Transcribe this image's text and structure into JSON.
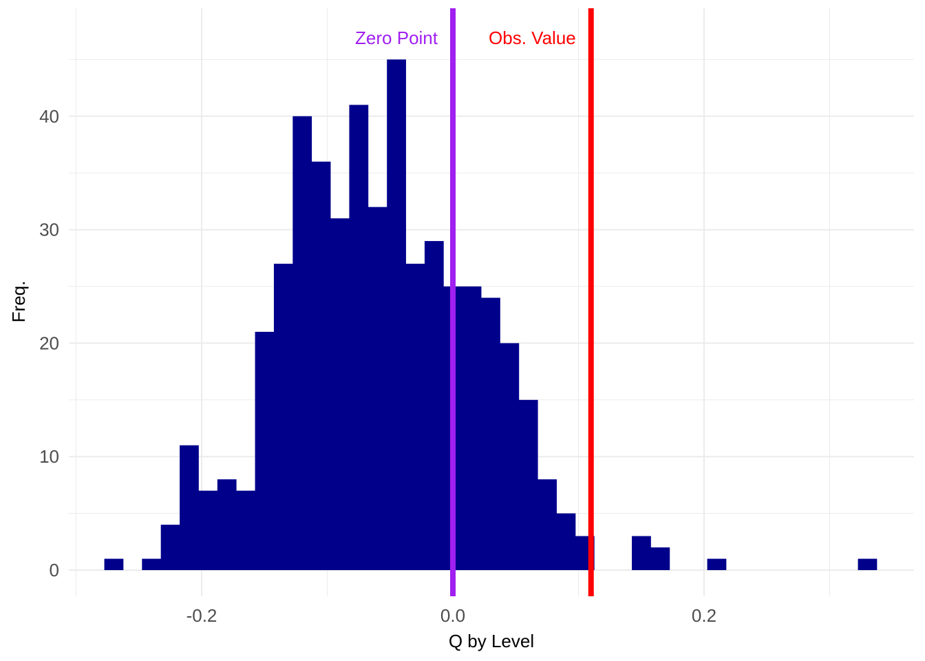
{
  "chart_data": {
    "type": "bar",
    "subtype": "histogram",
    "title": "",
    "xlabel": "Q by Level",
    "ylabel": "Freq.",
    "xlim": [
      -0.3,
      0.35
    ],
    "ylim": [
      0,
      45
    ],
    "x_ticks": [
      {
        "value": -0.2,
        "label": "-0.2"
      },
      {
        "value": 0.0,
        "label": "0.0"
      },
      {
        "value": 0.2,
        "label": "0.2"
      }
    ],
    "y_ticks": [
      {
        "value": 0,
        "label": "0"
      },
      {
        "value": 10,
        "label": "10"
      },
      {
        "value": 20,
        "label": "20"
      },
      {
        "value": 30,
        "label": "30"
      },
      {
        "value": 40,
        "label": "40"
      }
    ],
    "bin_width": 0.015,
    "bins": [
      {
        "x0": -0.2775,
        "x1": -0.2625,
        "count": 1
      },
      {
        "x0": -0.2625,
        "x1": -0.2475,
        "count": 0
      },
      {
        "x0": -0.2475,
        "x1": -0.2325,
        "count": 1
      },
      {
        "x0": -0.2325,
        "x1": -0.2175,
        "count": 4
      },
      {
        "x0": -0.2175,
        "x1": -0.2025,
        "count": 11
      },
      {
        "x0": -0.2025,
        "x1": -0.1875,
        "count": 7
      },
      {
        "x0": -0.1875,
        "x1": -0.1725,
        "count": 8
      },
      {
        "x0": -0.1725,
        "x1": -0.1575,
        "count": 7
      },
      {
        "x0": -0.1575,
        "x1": -0.1425,
        "count": 21
      },
      {
        "x0": -0.1425,
        "x1": -0.1275,
        "count": 27
      },
      {
        "x0": -0.1275,
        "x1": -0.1125,
        "count": 40
      },
      {
        "x0": -0.1125,
        "x1": -0.0975,
        "count": 36
      },
      {
        "x0": -0.0975,
        "x1": -0.0825,
        "count": 31
      },
      {
        "x0": -0.0825,
        "x1": -0.0675,
        "count": 41
      },
      {
        "x0": -0.0675,
        "x1": -0.0525,
        "count": 32
      },
      {
        "x0": -0.0525,
        "x1": -0.0375,
        "count": 45
      },
      {
        "x0": -0.0375,
        "x1": -0.0225,
        "count": 27
      },
      {
        "x0": -0.0225,
        "x1": -0.0075,
        "count": 29
      },
      {
        "x0": -0.0075,
        "x1": 0.0075,
        "count": 25
      },
      {
        "x0": 0.0075,
        "x1": 0.0225,
        "count": 25
      },
      {
        "x0": 0.0225,
        "x1": 0.0375,
        "count": 24
      },
      {
        "x0": 0.0375,
        "x1": 0.0525,
        "count": 20
      },
      {
        "x0": 0.0525,
        "x1": 0.0675,
        "count": 15
      },
      {
        "x0": 0.0675,
        "x1": 0.0825,
        "count": 8
      },
      {
        "x0": 0.0825,
        "x1": 0.0975,
        "count": 5
      },
      {
        "x0": 0.0975,
        "x1": 0.1125,
        "count": 3
      },
      {
        "x0": 0.1125,
        "x1": 0.1275,
        "count": 0
      },
      {
        "x0": 0.1275,
        "x1": 0.1425,
        "count": 0
      },
      {
        "x0": 0.1425,
        "x1": 0.1575,
        "count": 3
      },
      {
        "x0": 0.1575,
        "x1": 0.1725,
        "count": 2
      },
      {
        "x0": 0.1725,
        "x1": 0.1875,
        "count": 0
      },
      {
        "x0": 0.1875,
        "x1": 0.2025,
        "count": 0
      },
      {
        "x0": 0.2025,
        "x1": 0.2175,
        "count": 1
      },
      {
        "x0": 0.2175,
        "x1": 0.2325,
        "count": 0
      },
      {
        "x0": 0.2325,
        "x1": 0.2475,
        "count": 0
      },
      {
        "x0": 0.2475,
        "x1": 0.2625,
        "count": 0
      },
      {
        "x0": 0.2625,
        "x1": 0.2775,
        "count": 0
      },
      {
        "x0": 0.2775,
        "x1": 0.2925,
        "count": 0
      },
      {
        "x0": 0.2925,
        "x1": 0.3075,
        "count": 0
      },
      {
        "x0": 0.3075,
        "x1": 0.3225,
        "count": 0
      },
      {
        "x0": 0.3225,
        "x1": 0.3375,
        "count": 1
      }
    ],
    "bar_color": "#00008B",
    "reference_lines": [
      {
        "name": "zero-point",
        "label": "Zero Point",
        "x": 0.0,
        "color": "#A020F0",
        "label_side": "left"
      },
      {
        "name": "obs-value",
        "label": "Obs. Value",
        "x": 0.11,
        "color": "#FF0000",
        "label_side": "right"
      }
    ],
    "grid": true,
    "grid_color": "#EBEBEB",
    "legend": "none"
  }
}
